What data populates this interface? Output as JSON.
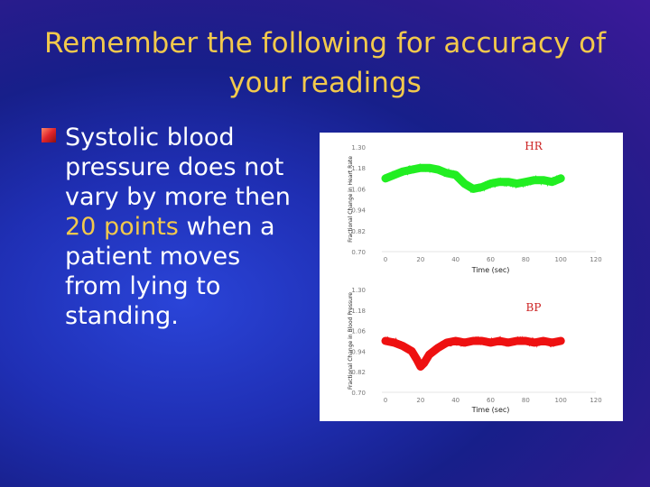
{
  "slide": {
    "title": "Remember the following for accuracy of your readings",
    "bullet": {
      "line1": "Systolic blood",
      "line2": "pressure does not",
      "line3": "vary by more then",
      "line4_highlight": "20 points",
      "line4_rest": " when a",
      "line5": "patient moves",
      "line6": "from lying to",
      "line7": "standing."
    },
    "colors": {
      "title": "#f2c94c",
      "highlight": "#f2c94c",
      "text": "#ffffff"
    }
  },
  "chart_data": [
    {
      "type": "line",
      "title": "HR",
      "ylabel": "Fractional Change in Heart Rate",
      "xlabel": "Time (sec)",
      "ylim": [
        0.7,
        1.3
      ],
      "xlim": [
        0,
        120
      ],
      "yticks": [
        "1.30",
        "1.18",
        "1.06",
        "0.94",
        "0.82",
        "0.70"
      ],
      "xticks": [
        "0",
        "20",
        "40",
        "60",
        "80",
        "100",
        "120"
      ],
      "series": [
        {
          "color": "#22ee22",
          "x": [
            0,
            5,
            10,
            15,
            20,
            25,
            30,
            35,
            40,
            45,
            50,
            55,
            60,
            65,
            70,
            75,
            80,
            85,
            90,
            95,
            100
          ],
          "y": [
            1.12,
            1.14,
            1.16,
            1.17,
            1.18,
            1.18,
            1.17,
            1.15,
            1.14,
            1.09,
            1.06,
            1.07,
            1.09,
            1.1,
            1.1,
            1.09,
            1.1,
            1.11,
            1.11,
            1.1,
            1.12
          ]
        }
      ]
    },
    {
      "type": "line",
      "title": "BP",
      "ylabel": "Fractional Change in Blood Pressure",
      "xlabel": "Time (sec)",
      "ylim": [
        0.7,
        1.3
      ],
      "xlim": [
        0,
        120
      ],
      "yticks": [
        "1.30",
        "1.18",
        "1.06",
        "0.94",
        "0.82",
        "0.70"
      ],
      "xticks": [
        "0",
        "20",
        "40",
        "60",
        "80",
        "100",
        "120"
      ],
      "series": [
        {
          "color": "#ee1111",
          "x": [
            0,
            5,
            10,
            15,
            18,
            20,
            22,
            25,
            30,
            35,
            40,
            45,
            50,
            55,
            60,
            65,
            70,
            75,
            80,
            85,
            90,
            95,
            100
          ],
          "y": [
            1.0,
            0.99,
            0.97,
            0.94,
            0.89,
            0.85,
            0.87,
            0.92,
            0.96,
            0.99,
            1.0,
            0.99,
            1.0,
            1.0,
            0.99,
            1.0,
            0.99,
            1.0,
            1.0,
            0.99,
            1.0,
            0.99,
            1.0
          ]
        }
      ]
    }
  ]
}
